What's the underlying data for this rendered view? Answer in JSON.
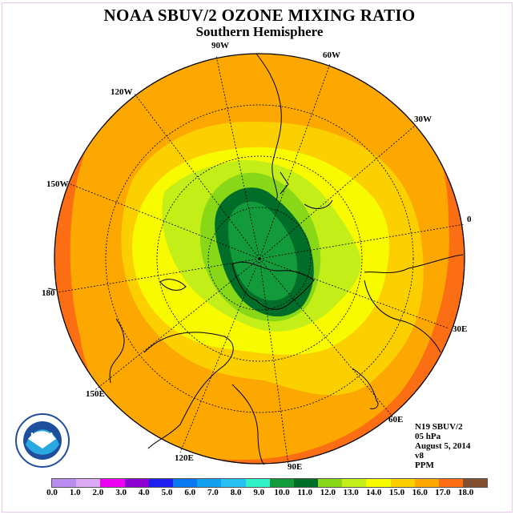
{
  "title": "NOAA SBUV/2 OZONE MIXING RATIO",
  "subtitle": "Southern Hemisphere",
  "longitude_labels": [
    "90W",
    "60W",
    "30W",
    "0",
    "30E",
    "60E",
    "90E",
    "120E",
    "150E",
    "180",
    "150W",
    "120W"
  ],
  "info": {
    "satellite": "N19 SBUV/2",
    "level": "05 hPa",
    "date": "August 5, 2014",
    "version": "v8",
    "units": "PPM"
  },
  "logo_text": "NOAA",
  "colorbar": {
    "ticks": [
      "0.0",
      "1.0",
      "2.0",
      "3.0",
      "4.0",
      "5.0",
      "6.0",
      "7.0",
      "8.0",
      "9.0",
      "10.0",
      "11.0",
      "12.0",
      "13.0",
      "14.0",
      "15.0",
      "16.0",
      "17.0",
      "18.0"
    ],
    "colors": [
      "#b98cf0",
      "#dcaaf5",
      "#f000f0",
      "#8c00d0",
      "#1e1ef0",
      "#0a78f0",
      "#14a0f0",
      "#28c0f0",
      "#30f0c8",
      "#139a3a",
      "#006e28",
      "#88d818",
      "#c4ee18",
      "#f8fa00",
      "#fcd000",
      "#fca800",
      "#fc6e14",
      "#f01414",
      "#825030"
    ]
  }
}
